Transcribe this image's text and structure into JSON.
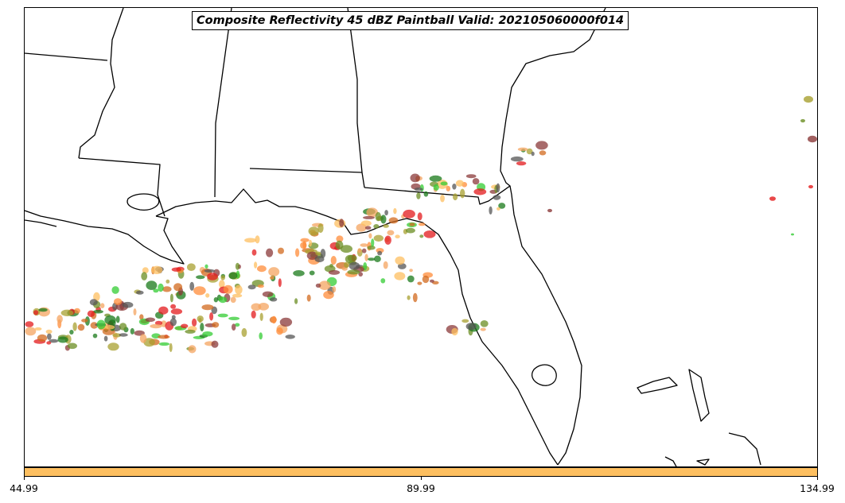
{
  "title": "Composite Reflectivity 45 dBZ Paintball Valid: 202105060000f014",
  "colorbar": {
    "color": "#fdbf60",
    "ticks": [
      "44.99",
      "89.99",
      "134.99"
    ]
  },
  "map": {
    "background": "#ffffff",
    "coastline_color": "#000000",
    "paintball_colors": [
      "#e31a1c",
      "#f4a460",
      "#ff8c3a",
      "#33cc33",
      "#1a7a1a",
      "#555555",
      "#8b3a3a",
      "#a8a030",
      "#fdbf60",
      "#d2691e",
      "#6b8e23"
    ]
  }
}
